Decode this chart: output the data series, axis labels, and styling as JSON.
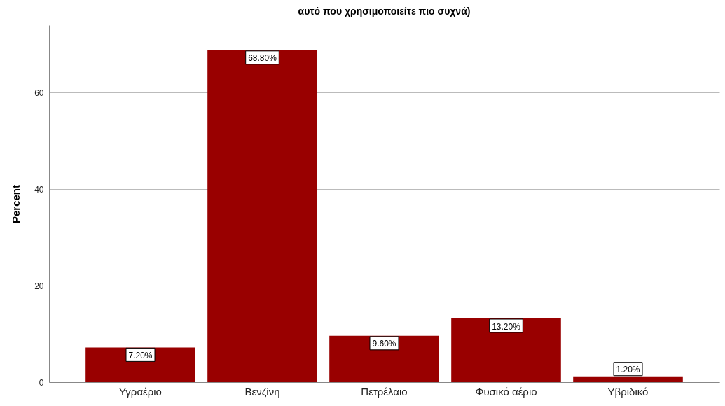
{
  "chart_data": {
    "type": "bar",
    "title": "αυτό που χρησιμοποιείτε πιο συχνά)",
    "ylabel": "Percent",
    "categories": [
      "Υγραέριο",
      "Βενζίνη",
      "Πετρέλαιο",
      "Φυσικό αέριο",
      "Υβριδικό"
    ],
    "values": [
      7.2,
      68.8,
      9.6,
      13.2,
      1.2
    ],
    "value_labels": [
      "7.20%",
      "68.80%",
      "9.60%",
      "13.20%",
      "1.20%"
    ],
    "color": "#990000",
    "ylim": [
      0,
      74
    ],
    "yticks": [
      0,
      20,
      40,
      60
    ],
    "grid": "y"
  }
}
